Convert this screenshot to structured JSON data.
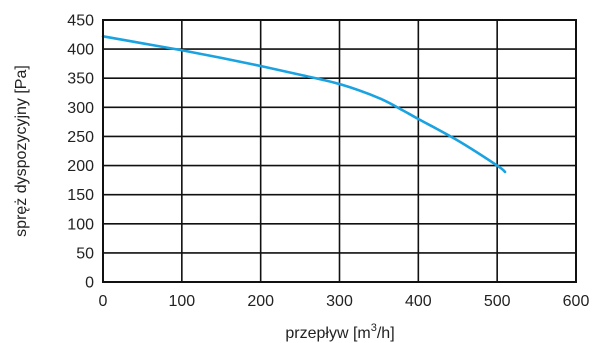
{
  "chart_data": {
    "type": "line",
    "xlabel_text": "przepływ [m",
    "xlabel_sup": "3",
    "xlabel_tail": "/h]",
    "ylabel": "spręż dyspozycyjny [Pa]",
    "xlim": [
      0,
      600
    ],
    "ylim": [
      0,
      450
    ],
    "xticks": [
      0,
      100,
      200,
      300,
      400,
      500,
      600
    ],
    "yticks": [
      0,
      50,
      100,
      150,
      200,
      250,
      300,
      350,
      400,
      450
    ],
    "grid": true,
    "series": [
      {
        "color": "#1aa3e0",
        "x": [
          0,
          50,
          100,
          150,
          200,
          250,
          300,
          350,
          380,
          400,
          450,
          500,
          510
        ],
        "y": [
          422,
          410,
          398,
          385,
          371,
          356,
          340,
          316,
          295,
          280,
          243,
          200,
          189
        ]
      }
    ]
  }
}
